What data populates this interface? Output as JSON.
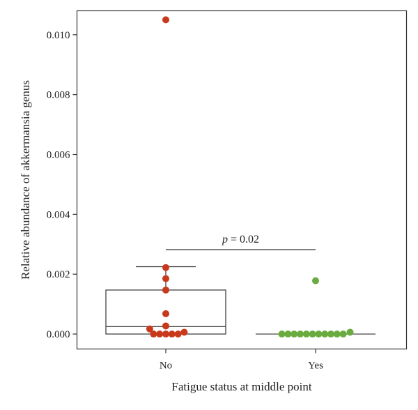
{
  "chart_data": {
    "type": "box-dot",
    "xlabel": "Fatigue status at middle point",
    "ylabel": "Relative abundance of akkermansia genus",
    "ylim": [
      -0.0005,
      0.0108
    ],
    "yticks": [
      "0.000",
      "0.002",
      "0.004",
      "0.006",
      "0.008",
      "0.010"
    ],
    "ytick_values": [
      0,
      0.002,
      0.004,
      0.006,
      0.008,
      0.01
    ],
    "grid": false,
    "groups": [
      {
        "category": "No",
        "color": "#c8391c",
        "box": {
          "q1": 0.0,
          "median": 0.00025,
          "q3": 0.00147,
          "whisker_low": 0.0,
          "whisker_high": 0.00225
        },
        "outliers": [
          0.0105
        ],
        "points": [
          {
            "value": 0.0105,
            "offset": 0
          },
          {
            "value": 0.00222,
            "offset": 0
          },
          {
            "value": 0.00185,
            "offset": 0
          },
          {
            "value": 0.00147,
            "offset": 0
          },
          {
            "value": 0.00068,
            "offset": 0
          },
          {
            "value": 0.00027,
            "offset": 0
          },
          {
            "value": 0.00017,
            "offset": -2.1
          },
          {
            "value": 0.0,
            "offset": -1.6
          },
          {
            "value": 0.0,
            "offset": -0.8
          },
          {
            "value": 0.0,
            "offset": 0
          },
          {
            "value": 0.0,
            "offset": 0.8
          },
          {
            "value": 0.0,
            "offset": 1.6
          },
          {
            "value": 6e-05,
            "offset": 2.4
          }
        ]
      },
      {
        "category": "Yes",
        "color": "#6aab3f",
        "box": {
          "q1": 0.0,
          "median": 0.0,
          "q3": 0.0,
          "whisker_low": 0.0,
          "whisker_high": 0.0
        },
        "outliers": [
          0.00178
        ],
        "points": [
          {
            "value": 0.00178,
            "offset": 0
          },
          {
            "value": 0.0,
            "offset": -4.4
          },
          {
            "value": 0.0,
            "offset": -3.6
          },
          {
            "value": 0.0,
            "offset": -2.8
          },
          {
            "value": 0.0,
            "offset": -2.0
          },
          {
            "value": 0.0,
            "offset": -1.2
          },
          {
            "value": 0.0,
            "offset": -0.4
          },
          {
            "value": 0.0,
            "offset": 0.4
          },
          {
            "value": 0.0,
            "offset": 1.2
          },
          {
            "value": 0.0,
            "offset": 2.0
          },
          {
            "value": 0.0,
            "offset": 2.8
          },
          {
            "value": 0.0,
            "offset": 3.6
          },
          {
            "value": 6e-05,
            "offset": 4.5
          }
        ]
      }
    ],
    "annotation": {
      "p_symbol": "p",
      "p_text": " = 0.02",
      "y_value": 0.00282
    }
  }
}
